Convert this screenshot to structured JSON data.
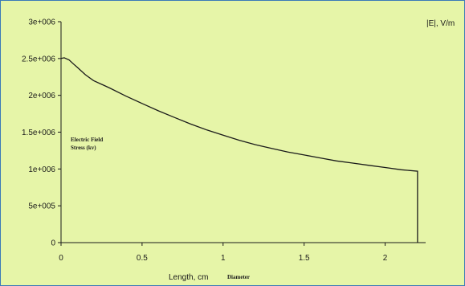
{
  "chart_data": {
    "type": "line",
    "title": "",
    "xlabel": "Length, cm",
    "xlabel_note": "Diameter",
    "ylabel": "",
    "series_label": "|E|, V/m",
    "annotation": [
      "Electric Field",
      "Stress (kv)"
    ],
    "xlim": [
      0,
      2.25
    ],
    "ylim": [
      0,
      3000000
    ],
    "x_ticks": [
      0,
      0.5,
      1,
      1.5,
      2
    ],
    "x_tick_labels": [
      "0",
      "0.5",
      "1",
      "1.5",
      "2"
    ],
    "y_ticks": [
      0,
      500000,
      1000000,
      1500000,
      2000000,
      2500000,
      3000000
    ],
    "y_tick_labels": [
      "0",
      "5e+005",
      "1e+006",
      "1.5e+006",
      "2e+006",
      "2.5e+006",
      "3e+006"
    ],
    "grid": false,
    "legend": "top-right",
    "colors": {
      "background": "#e6f5a8",
      "line": "#1a1a1a",
      "border": "#3a7ab8"
    },
    "series": [
      {
        "name": "|E|, V/m",
        "x": [
          0,
          0.02,
          0.05,
          0.08,
          0.1,
          0.15,
          0.2,
          0.3,
          0.4,
          0.5,
          0.6,
          0.7,
          0.8,
          0.9,
          1.0,
          1.1,
          1.2,
          1.3,
          1.4,
          1.5,
          1.6,
          1.7,
          1.8,
          1.9,
          2.0,
          2.1,
          2.2,
          2.2
        ],
        "y": [
          2500000,
          2510000,
          2480000,
          2420000,
          2380000,
          2280000,
          2200000,
          2100000,
          1990000,
          1890000,
          1790000,
          1700000,
          1610000,
          1530000,
          1460000,
          1390000,
          1330000,
          1280000,
          1230000,
          1190000,
          1150000,
          1110000,
          1080000,
          1050000,
          1020000,
          990000,
          970000,
          0
        ]
      }
    ]
  }
}
